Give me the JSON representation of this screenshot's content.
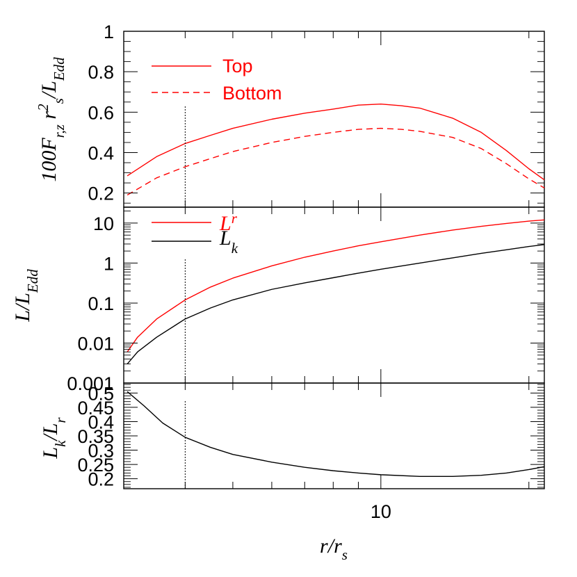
{
  "colors": {
    "red": "#ff0000",
    "black": "#000000"
  },
  "xaxis": {
    "scale": "log",
    "range": [
      3,
      21.5
    ],
    "tick_labels": [
      {
        "v": 10,
        "text": "10"
      }
    ],
    "label": {
      "main": "r",
      "slash": "/",
      "sub_main": "r",
      "sub": "s"
    }
  },
  "chart_data": [
    {
      "type": "line",
      "panel": "top",
      "ylabel": "100F_{r,z} r^2_s / L_{Edd}",
      "ylim": [
        0.13,
        1.0
      ],
      "yticks": [
        0.2,
        0.4,
        0.6,
        0.8,
        1
      ],
      "ytick_labels": [
        "0.2",
        "0.4",
        "0.6",
        "0.8",
        "1"
      ],
      "legend_position": "top-left",
      "series": [
        {
          "name": "Top",
          "color": "#ff0000",
          "dash": "solid",
          "x": [
            3.05,
            3.5,
            4,
            4.5,
            5,
            6,
            7,
            8,
            9,
            10,
            11,
            12,
            14,
            16,
            18,
            20,
            21.5
          ],
          "y": [
            0.285,
            0.38,
            0.445,
            0.485,
            0.52,
            0.565,
            0.595,
            0.615,
            0.635,
            0.64,
            0.632,
            0.62,
            0.57,
            0.5,
            0.41,
            0.32,
            0.265
          ]
        },
        {
          "name": "Bottom",
          "color": "#ff0000",
          "dash": "dashed",
          "x": [
            3.05,
            3.5,
            4,
            4.5,
            5,
            6,
            7,
            8,
            9,
            10,
            11,
            12,
            14,
            16,
            18,
            20,
            21.5
          ],
          "y": [
            0.19,
            0.275,
            0.33,
            0.37,
            0.405,
            0.45,
            0.48,
            0.5,
            0.515,
            0.52,
            0.515,
            0.505,
            0.475,
            0.42,
            0.345,
            0.27,
            0.225
          ]
        }
      ]
    },
    {
      "type": "line",
      "panel": "middle",
      "ylabel": "L / L_{Edd}",
      "yscale": "log",
      "ylim": [
        0.001,
        25
      ],
      "yticks": [
        0.001,
        0.01,
        0.1,
        1,
        10
      ],
      "ytick_labels": [
        "0.001",
        "0.01",
        "0.1",
        "1",
        "10"
      ],
      "legend_position": "top-left",
      "series": [
        {
          "name": "L_r",
          "color": "#ff0000",
          "dash": "solid",
          "x": [
            3.05,
            3.2,
            3.5,
            4,
            4.5,
            5,
            6,
            7,
            8,
            9,
            10,
            12,
            14,
            16,
            18,
            20,
            21.5
          ],
          "y": [
            0.006,
            0.014,
            0.04,
            0.12,
            0.25,
            0.42,
            0.85,
            1.4,
            2.0,
            2.7,
            3.4,
            5.0,
            6.7,
            8.3,
            9.8,
            11.2,
            12
          ]
        },
        {
          "name": "L_k",
          "color": "#000000",
          "dash": "solid",
          "x": [
            3.05,
            3.2,
            3.5,
            4,
            4.5,
            5,
            6,
            7,
            8,
            9,
            10,
            12,
            14,
            16,
            18,
            20,
            21.5
          ],
          "y": [
            0.003,
            0.006,
            0.014,
            0.04,
            0.075,
            0.12,
            0.22,
            0.32,
            0.43,
            0.56,
            0.7,
            1.0,
            1.35,
            1.75,
            2.15,
            2.6,
            2.9
          ]
        }
      ]
    },
    {
      "type": "line",
      "panel": "bottom",
      "ylabel": "L_k / L_r",
      "ylim": [
        0.165,
        0.535
      ],
      "yticks": [
        0.2,
        0.25,
        0.3,
        0.35,
        0.4,
        0.45,
        0.5
      ],
      "ytick_labels": [
        "0.2",
        "0.25",
        "0.3",
        "0.35",
        "0.4",
        "0.45",
        "0.5"
      ],
      "series": [
        {
          "name": "L_k/L_r",
          "color": "#000000",
          "dash": "solid",
          "x": [
            3.05,
            3.3,
            3.6,
            4,
            4.5,
            5,
            6,
            7,
            8,
            9,
            10,
            12,
            14,
            16,
            18,
            20,
            21.5
          ],
          "y": [
            0.505,
            0.455,
            0.395,
            0.345,
            0.31,
            0.285,
            0.258,
            0.24,
            0.228,
            0.22,
            0.214,
            0.208,
            0.208,
            0.212,
            0.22,
            0.232,
            0.242
          ]
        }
      ]
    }
  ],
  "marker_line": {
    "x": 4
  },
  "legends": {
    "top": [
      {
        "text": "Top",
        "color": "#ff0000",
        "dash": "solid"
      },
      {
        "text": "Bottom",
        "color": "#ff0000",
        "dash": "dashed"
      }
    ],
    "middle": [
      {
        "main": "L",
        "sub": "r",
        "color": "#ff0000"
      },
      {
        "main": "L",
        "sub": "k",
        "color": "#000000"
      }
    ]
  }
}
